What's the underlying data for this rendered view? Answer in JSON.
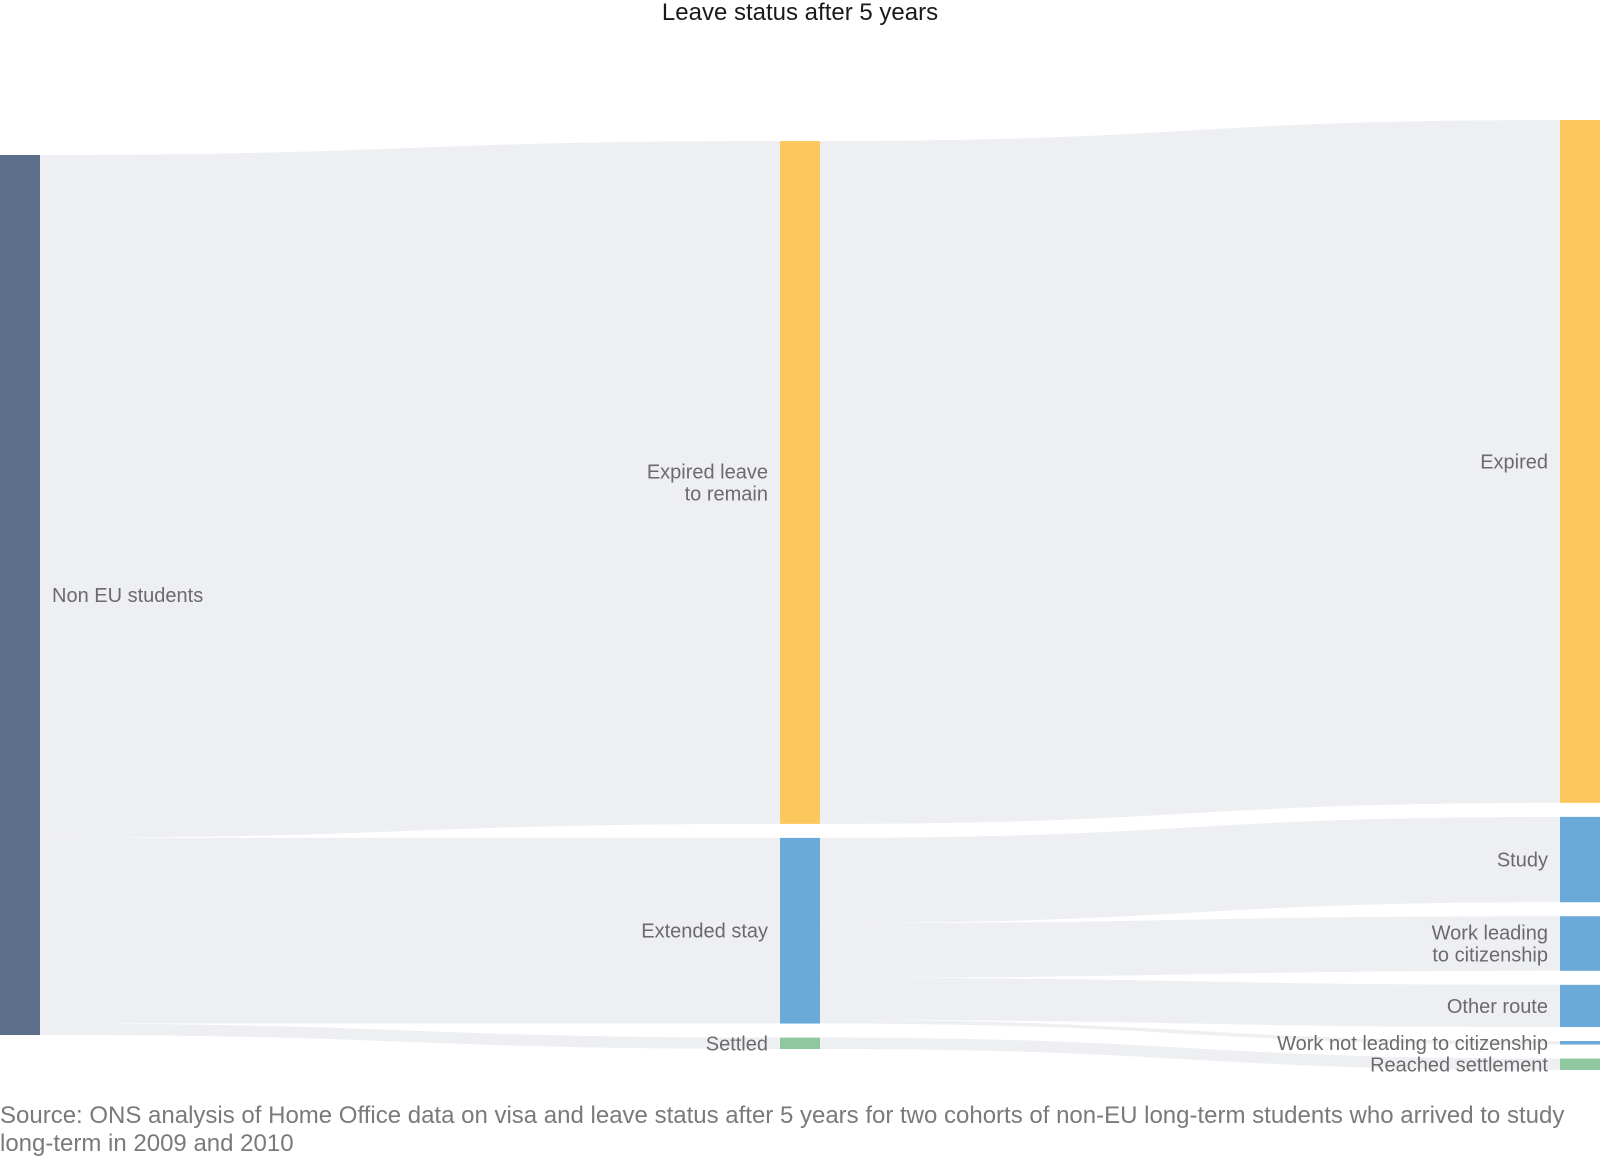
{
  "chart_data": {
    "type": "sankey",
    "title": "Leave status after 5 years",
    "source": "Source: ONS analysis of Home Office data on visa and leave status after 5 years for two cohorts of non-EU long-term students who arrived to study long-term in 2009 and 2010",
    "colors": {
      "link": "#eeeff3",
      "Non EU students": "#5b6e8a",
      "Expired leave to remain": "#fcc75c",
      "Extended stay": "#6baad8",
      "Settled": "#8fc79e",
      "Expired": "#fcc75c",
      "Study": "#6baad8",
      "Work leading to citizenship": "#6baad8",
      "Other route": "#6baad8",
      "Work not leading to citizenship": "#6baad8",
      "Reached settlement": "#8fc79e"
    },
    "nodes": [
      {
        "id": "Non EU students",
        "label_lines": [
          "Non EU students"
        ],
        "column": 0
      },
      {
        "id": "Expired leave to remain",
        "label_lines": [
          "Expired leave",
          "to remain"
        ],
        "column": 1
      },
      {
        "id": "Extended stay",
        "label_lines": [
          "Extended stay"
        ],
        "column": 1
      },
      {
        "id": "Settled",
        "label_lines": [
          "Settled"
        ],
        "column": 1
      },
      {
        "id": "Expired",
        "label_lines": [
          "Expired"
        ],
        "column": 2
      },
      {
        "id": "Study",
        "label_lines": [
          "Study"
        ],
        "column": 2
      },
      {
        "id": "Work leading to citizenship",
        "label_lines": [
          "Work leading",
          "to citizenship"
        ],
        "column": 2
      },
      {
        "id": "Other route",
        "label_lines": [
          "Other route"
        ],
        "column": 2
      },
      {
        "id": "Work not leading to citizenship",
        "label_lines": [
          "Work not leading to citizenship"
        ],
        "column": 2
      },
      {
        "id": "Reached settlement",
        "label_lines": [
          "Reached settlement"
        ],
        "column": 2
      }
    ],
    "links": [
      {
        "source": "Non EU students",
        "target": "Expired leave to remain",
        "value": 77.6
      },
      {
        "source": "Non EU students",
        "target": "Extended stay",
        "value": 21.1
      },
      {
        "source": "Non EU students",
        "target": "Settled",
        "value": 1.3
      },
      {
        "source": "Expired leave to remain",
        "target": "Expired",
        "value": 77.6
      },
      {
        "source": "Extended stay",
        "target": "Study",
        "value": 9.7
      },
      {
        "source": "Extended stay",
        "target": "Work leading to citizenship",
        "value": 6.2
      },
      {
        "source": "Extended stay",
        "target": "Other route",
        "value": 4.8
      },
      {
        "source": "Extended stay",
        "target": "Work not leading to citizenship",
        "value": 0.4
      },
      {
        "source": "Settled",
        "target": "Reached settlement",
        "value": 1.3
      }
    ]
  }
}
